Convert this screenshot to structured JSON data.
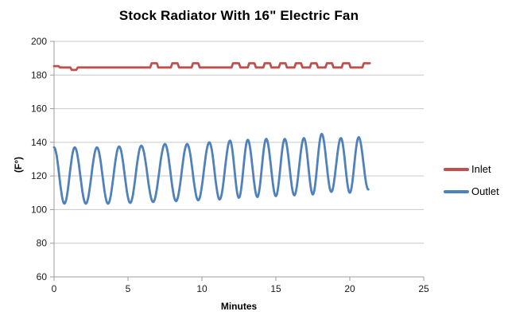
{
  "chart_data": {
    "type": "line",
    "title": "Stock Radiator With 16\" Electric Fan",
    "xlabel": "Minutes",
    "ylabel": "(F°)",
    "xlim": [
      0,
      25
    ],
    "ylim": [
      60,
      200
    ],
    "x_ticks": [
      0,
      5,
      10,
      15,
      20,
      25
    ],
    "y_ticks": [
      60,
      80,
      100,
      120,
      140,
      160,
      180,
      200
    ],
    "grid": "horizontal-only",
    "legend_position": "right",
    "colors": {
      "grid": "#C9C9C9",
      "axis": "#9B9B9B"
    },
    "series": [
      {
        "name": "Inlet",
        "color": "#C0504D",
        "style": "step",
        "points": [
          [
            0,
            185.3
          ],
          [
            0.3,
            185.3
          ],
          [
            0.4,
            184.5
          ],
          [
            1.1,
            184.5
          ],
          [
            1.2,
            183
          ],
          [
            1.5,
            183
          ],
          [
            1.6,
            184.5
          ],
          [
            6.5,
            184.5
          ],
          [
            6.6,
            187
          ],
          [
            6.95,
            187
          ],
          [
            7.05,
            184.5
          ],
          [
            7.9,
            184.5
          ],
          [
            8.0,
            187
          ],
          [
            8.35,
            187
          ],
          [
            8.45,
            184.5
          ],
          [
            9.3,
            184.5
          ],
          [
            9.4,
            187
          ],
          [
            9.75,
            187
          ],
          [
            9.85,
            184.5
          ],
          [
            12.0,
            184.5
          ],
          [
            12.1,
            187
          ],
          [
            12.5,
            187
          ],
          [
            12.6,
            184.5
          ],
          [
            13.1,
            184.5
          ],
          [
            13.2,
            187
          ],
          [
            13.55,
            187
          ],
          [
            13.65,
            184.5
          ],
          [
            14.15,
            184.5
          ],
          [
            14.25,
            187
          ],
          [
            14.6,
            187
          ],
          [
            14.7,
            184.5
          ],
          [
            15.2,
            184.5
          ],
          [
            15.3,
            187
          ],
          [
            15.65,
            187
          ],
          [
            15.75,
            184.5
          ],
          [
            16.25,
            184.5
          ],
          [
            16.35,
            187
          ],
          [
            16.7,
            187
          ],
          [
            16.8,
            184.5
          ],
          [
            17.3,
            184.5
          ],
          [
            17.4,
            187
          ],
          [
            17.75,
            187
          ],
          [
            17.85,
            184.5
          ],
          [
            18.35,
            184.5
          ],
          [
            18.45,
            187
          ],
          [
            18.8,
            187
          ],
          [
            18.9,
            184.5
          ],
          [
            19.45,
            184.5
          ],
          [
            19.55,
            187
          ],
          [
            19.95,
            187
          ],
          [
            20.05,
            184.5
          ],
          [
            20.85,
            184.5
          ],
          [
            20.95,
            187
          ],
          [
            21.35,
            187
          ]
        ]
      },
      {
        "name": "Outlet",
        "color": "#4F81BD",
        "style": "smooth",
        "points": [
          [
            0,
            137
          ],
          [
            0.7,
            103.5
          ],
          [
            1.4,
            137
          ],
          [
            2.15,
            103.5
          ],
          [
            2.9,
            137
          ],
          [
            3.65,
            103.5
          ],
          [
            4.4,
            137.5
          ],
          [
            5.15,
            104
          ],
          [
            5.9,
            138
          ],
          [
            6.7,
            104.5
          ],
          [
            7.5,
            139
          ],
          [
            8.25,
            105
          ],
          [
            9.0,
            139
          ],
          [
            9.75,
            105.5
          ],
          [
            10.5,
            140
          ],
          [
            11.2,
            106
          ],
          [
            11.9,
            141
          ],
          [
            12.5,
            107
          ],
          [
            13.1,
            141.5
          ],
          [
            13.75,
            107.5
          ],
          [
            14.35,
            142
          ],
          [
            15.0,
            108
          ],
          [
            15.6,
            142
          ],
          [
            16.25,
            108.5
          ],
          [
            16.9,
            142.5
          ],
          [
            17.5,
            109
          ],
          [
            18.1,
            145
          ],
          [
            18.75,
            110.5
          ],
          [
            19.4,
            142.5
          ],
          [
            20.0,
            110
          ],
          [
            20.6,
            143
          ],
          [
            21.25,
            112
          ]
        ]
      }
    ]
  },
  "legend": {
    "items": [
      {
        "label": "Inlet",
        "color": "#C0504D"
      },
      {
        "label": "Outlet",
        "color": "#4F81BD"
      }
    ]
  }
}
